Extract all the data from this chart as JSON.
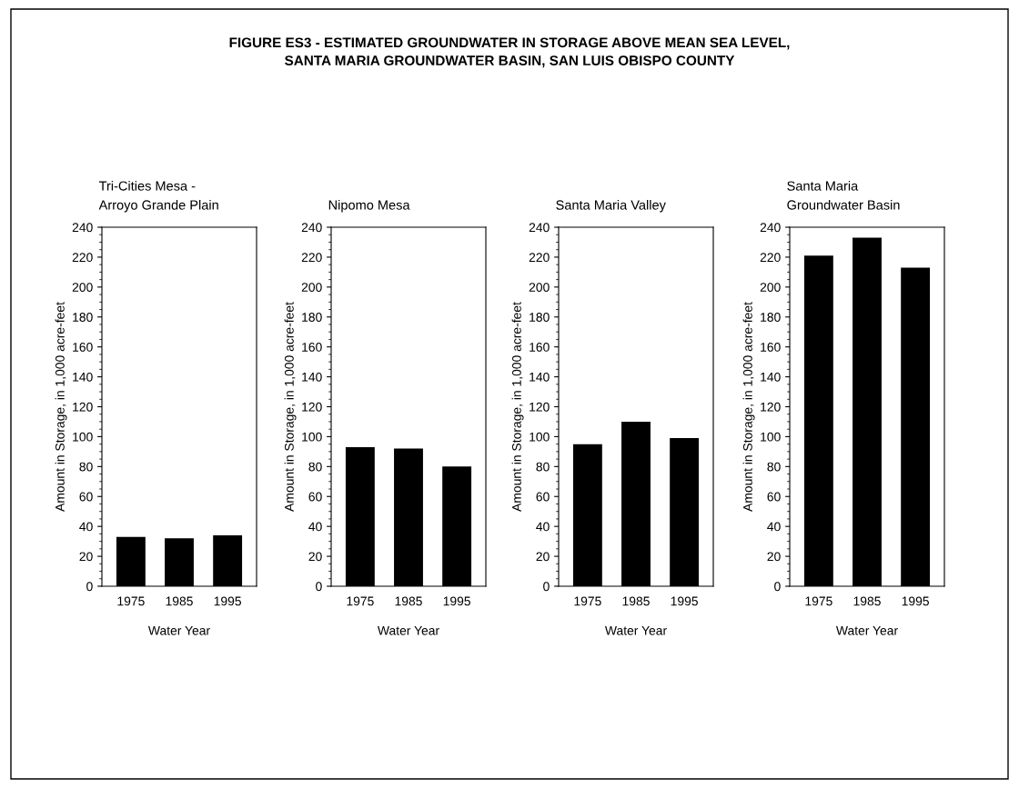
{
  "chart_data": [
    {
      "type": "bar",
      "annotations": [
        "FIGURE ES3 - ESTIMATED GROUNDWATER IN STORAGE ABOVE MEAN SEA LEVEL,\nSANTA MARIA GROUNDWATER BASIN, SAN LUIS OBISPO COUNTY"
      ],
      "title": "Tri-Cities Mesa -\nArroyo Grande Plain",
      "xlabel": "Water Year",
      "ylabel": "Amount in Storage, in 1,000 acre-feet",
      "categories": [
        "1975",
        "1985",
        "1995"
      ],
      "values": [
        33,
        32,
        34
      ],
      "color": "#000000",
      "ylim": [
        0,
        240
      ],
      "yticks": [
        0,
        20,
        40,
        60,
        80,
        100,
        120,
        140,
        160,
        180,
        200,
        220,
        240
      ],
      "grid": false,
      "legend": false
    },
    {
      "type": "bar",
      "title": "Nipomo Mesa",
      "xlabel": "Water Year",
      "ylabel": "Amount in Storage, in 1,000 acre-feet",
      "categories": [
        "1975",
        "1985",
        "1995"
      ],
      "values": [
        93,
        92,
        80
      ],
      "color": "#000000",
      "ylim": [
        0,
        240
      ],
      "yticks": [
        0,
        20,
        40,
        60,
        80,
        100,
        120,
        140,
        160,
        180,
        200,
        220,
        240
      ],
      "grid": false,
      "legend": false
    },
    {
      "type": "bar",
      "title": "Santa Maria Valley",
      "xlabel": "Water Year",
      "ylabel": "Amount in Storage, in 1,000 acre-feet",
      "categories": [
        "1975",
        "1985",
        "1995"
      ],
      "values": [
        95,
        110,
        99
      ],
      "color": "#000000",
      "ylim": [
        0,
        240
      ],
      "yticks": [
        0,
        20,
        40,
        60,
        80,
        100,
        120,
        140,
        160,
        180,
        200,
        220,
        240
      ],
      "grid": false,
      "legend": false
    },
    {
      "type": "bar",
      "title": "Santa Maria\nGroundwater Basin",
      "xlabel": "Water Year",
      "ylabel": "Amount in Storage, in 1,000 acre-feet",
      "categories": [
        "1975",
        "1985",
        "1995"
      ],
      "values": [
        221,
        233,
        213
      ],
      "color": "#000000",
      "ylim": [
        0,
        240
      ],
      "yticks": [
        0,
        20,
        40,
        60,
        80,
        100,
        120,
        140,
        160,
        180,
        200,
        220,
        240
      ],
      "grid": false,
      "legend": false
    }
  ]
}
